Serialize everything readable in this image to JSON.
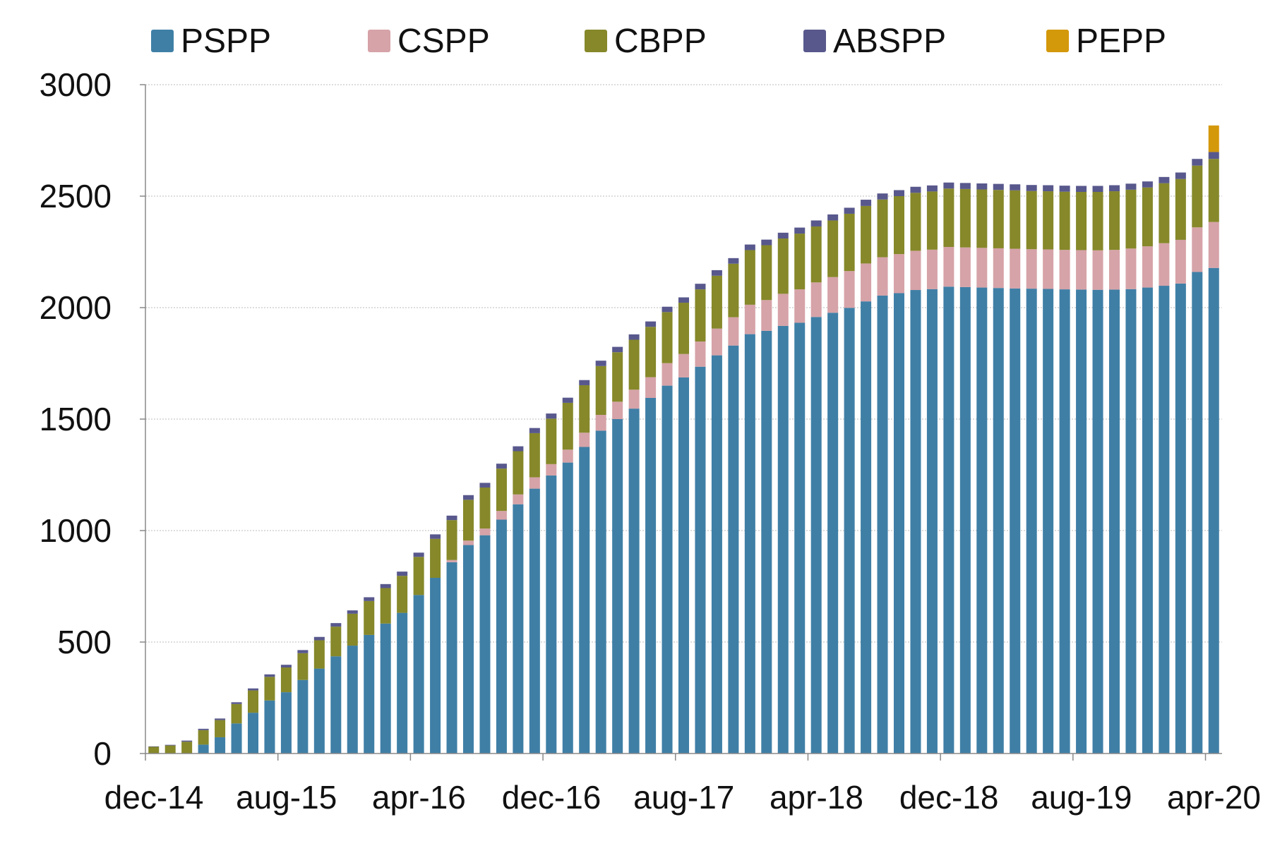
{
  "chart_data": {
    "type": "stacked_bar",
    "categories": [
      "dec-14",
      null,
      null,
      null,
      null,
      null,
      null,
      null,
      "aug-15",
      null,
      null,
      null,
      null,
      null,
      null,
      null,
      "apr-16",
      null,
      null,
      null,
      null,
      null,
      null,
      null,
      "dec-16",
      null,
      null,
      null,
      null,
      null,
      null,
      null,
      "aug-17",
      null,
      null,
      null,
      null,
      null,
      null,
      null,
      "apr-18",
      null,
      null,
      null,
      null,
      null,
      null,
      null,
      "dec-18",
      null,
      null,
      null,
      null,
      null,
      null,
      null,
      "aug-19",
      null,
      null,
      null,
      null,
      null,
      null,
      null,
      "apr-20"
    ],
    "series": [
      {
        "name": "PSPP",
        "color": "#3f7fa6",
        "values": [
          0,
          0,
          0,
          40,
          73,
          135,
          183,
          238,
          275,
          330,
          381,
          436,
          484,
          532,
          583,
          631,
          711,
          788,
          858,
          935,
          979,
          1049,
          1118,
          1188,
          1247,
          1305,
          1375,
          1448,
          1500,
          1547,
          1595,
          1650,
          1687,
          1735,
          1786,
          1830,
          1881,
          1896,
          1918,
          1932,
          1958,
          1977,
          1999,
          2028,
          2054,
          2065,
          2079,
          2083,
          2094,
          2092,
          2090,
          2088,
          2086,
          2085,
          2084,
          2082,
          2081,
          2080,
          2081,
          2083,
          2090,
          2098,
          2108,
          2160,
          2178
        ]
      },
      {
        "name": "CSPP",
        "color": "#d6a3a8",
        "values": [
          0,
          0,
          0,
          0,
          0,
          0,
          0,
          0,
          0,
          0,
          0,
          0,
          0,
          0,
          0,
          0,
          0,
          0,
          10,
          20,
          30,
          39,
          44,
          51,
          51,
          58,
          64,
          71,
          78,
          85,
          93,
          101,
          105,
          113,
          120,
          127,
          132,
          138,
          144,
          150,
          155,
          160,
          165,
          170,
          172,
          175,
          176,
          177,
          178,
          178,
          178,
          178,
          178,
          177,
          177,
          177,
          177,
          177,
          178,
          182,
          185,
          191,
          196,
          200,
          206
        ]
      },
      {
        "name": "CBPP",
        "color": "#86882a",
        "values": [
          30,
          36,
          53,
          65,
          77,
          87,
          100,
          106,
          111,
          120,
          127,
          133,
          143,
          152,
          159,
          166,
          171,
          175,
          179,
          183,
          184,
          190,
          194,
          198,
          204,
          210,
          213,
          219,
          222,
          224,
          226,
          229,
          230,
          234,
          237,
          240,
          245,
          246,
          248,
          250,
          251,
          254,
          257,
          258,
          259,
          260,
          260,
          261,
          262,
          262,
          262,
          262,
          262,
          261,
          261,
          261,
          261,
          262,
          263,
          264,
          264,
          269,
          273,
          277,
          283
        ]
      },
      {
        "name": "ABSPP",
        "color": "#58588d",
        "values": [
          2,
          3,
          5,
          6,
          7,
          8,
          9,
          11,
          12,
          14,
          15,
          16,
          15,
          17,
          18,
          19,
          19,
          20,
          20,
          21,
          21,
          22,
          22,
          23,
          23,
          23,
          23,
          24,
          24,
          24,
          24,
          24,
          24,
          25,
          25,
          25,
          25,
          25,
          26,
          27,
          27,
          27,
          27,
          28,
          27,
          27,
          27,
          27,
          27,
          27,
          27,
          27,
          27,
          27,
          27,
          27,
          27,
          27,
          27,
          27,
          27,
          28,
          29,
          30,
          31
        ]
      },
      {
        "name": "PEPP",
        "color": "#d4980b",
        "values": [
          0,
          0,
          0,
          0,
          0,
          0,
          0,
          0,
          0,
          0,
          0,
          0,
          0,
          0,
          0,
          0,
          0,
          0,
          0,
          0,
          0,
          0,
          0,
          0,
          0,
          0,
          0,
          0,
          0,
          0,
          0,
          0,
          0,
          0,
          0,
          0,
          0,
          0,
          0,
          0,
          0,
          0,
          0,
          0,
          0,
          0,
          0,
          0,
          0,
          0,
          0,
          0,
          0,
          0,
          0,
          0,
          0,
          0,
          0,
          0,
          0,
          0,
          0,
          0,
          119
        ]
      }
    ],
    "ylim": [
      0,
      3000
    ],
    "yticks": [
      0,
      500,
      1000,
      1500,
      2000,
      2500,
      3000
    ],
    "grid": true,
    "legend": "top"
  }
}
